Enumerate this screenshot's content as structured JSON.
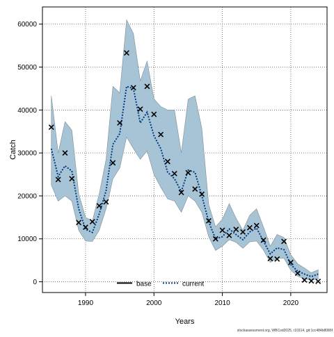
{
  "chart_data": {
    "type": "line",
    "xlabel": "Years",
    "ylabel": "Catch",
    "xlim": [
      1983.7,
      2025.3
    ],
    "ylim": [
      -2500,
      64000
    ],
    "x_ticks": [
      1990,
      2000,
      2010,
      2020
    ],
    "y_ticks": [
      0,
      10000,
      20000,
      30000,
      40000,
      50000,
      60000
    ],
    "grid": true,
    "legend_position": "bottom-center",
    "colors": {
      "band": "#a6c4d6",
      "band_edge": "#7f8c93",
      "base": "#000000",
      "current": "#003a80"
    },
    "observed_catch": {
      "marker": "x",
      "x": [
        1985,
        1986,
        1987,
        1988,
        1989,
        1990,
        1991,
        1992,
        1993,
        1994,
        1995,
        1996,
        1997,
        1998,
        1999,
        2000,
        2001,
        2002,
        2003,
        2004,
        2005,
        2006,
        2007,
        2008,
        2009,
        2010,
        2011,
        2012,
        2013,
        2014,
        2015,
        2016,
        2017,
        2018,
        2019,
        2020,
        2021,
        2022,
        2023,
        2024
      ],
      "y": [
        36000,
        23800,
        30000,
        24000,
        13800,
        12700,
        14000,
        17700,
        18600,
        27700,
        37000,
        53300,
        45200,
        40200,
        45500,
        39000,
        34300,
        28000,
        25200,
        20800,
        25400,
        21600,
        20400,
        14200,
        10000,
        12000,
        10800,
        12200,
        11600,
        12600,
        13100,
        9700,
        5400,
        5300,
        9400,
        4500,
        2000,
        400,
        200,
        100
      ]
    },
    "series": [
      {
        "name": "base",
        "style": "solid",
        "x": [],
        "y": []
      },
      {
        "name": "current",
        "style": "dotted",
        "x": [
          1985,
          1986,
          1987,
          1988,
          1989,
          1990,
          1991,
          1992,
          1993,
          1994,
          1995,
          1996,
          1997,
          1998,
          1999,
          2000,
          2001,
          2002,
          2003,
          2004,
          2005,
          2006,
          2007,
          2008,
          2009,
          2010,
          2011,
          2012,
          2013,
          2014,
          2015,
          2016,
          2017,
          2018,
          2019,
          2020,
          2021,
          2022,
          2023,
          2024
        ],
        "y": [
          31000,
          24500,
          27000,
          25800,
          17000,
          12200,
          11500,
          15800,
          21200,
          32000,
          34500,
          45500,
          45000,
          37000,
          39500,
          34000,
          31000,
          25500,
          24000,
          21000,
          26000,
          25500,
          20000,
          14000,
          10000,
          10500,
          12300,
          11000,
          9800,
          11600,
          12500,
          9500,
          6500,
          7900,
          7500,
          4000,
          2500,
          1800,
          1200,
          1800
        ]
      }
    ],
    "confidence_band": {
      "x": [
        1985,
        1986,
        1987,
        1988,
        1989,
        1990,
        1991,
        1992,
        1993,
        1994,
        1995,
        1996,
        1997,
        1998,
        1999,
        2000,
        2001,
        2002,
        2003,
        2004,
        2005,
        2006,
        2007,
        2008,
        2009,
        2010,
        2011,
        2012,
        2013,
        2014,
        2015,
        2016,
        2017,
        2018,
        2019,
        2020,
        2021,
        2022,
        2023,
        2024
      ],
      "lower": [
        22500,
        18800,
        20000,
        18800,
        12000,
        9500,
        9400,
        12000,
        17000,
        24000,
        26500,
        33700,
        31000,
        28500,
        30500,
        25000,
        22000,
        19300,
        18800,
        16200,
        20000,
        18800,
        16200,
        10500,
        7300,
        8300,
        9800,
        9200,
        7800,
        9300,
        9500,
        7400,
        4500,
        5500,
        5500,
        2700,
        1300,
        700,
        400,
        700
      ],
      "upper": [
        43300,
        30000,
        37300,
        35300,
        20500,
        15000,
        14200,
        20500,
        28500,
        45500,
        44000,
        61000,
        57800,
        46800,
        51400,
        42600,
        40800,
        40000,
        40000,
        30000,
        42500,
        43300,
        35700,
        18000,
        12800,
        14600,
        18200,
        14800,
        12000,
        15500,
        17000,
        12800,
        8300,
        11000,
        10300,
        6300,
        4200,
        3200,
        2100,
        2800
      ]
    },
    "annotation": "stockassessment.org, WBCod2025, r10314, git:1cc484b8086f"
  }
}
